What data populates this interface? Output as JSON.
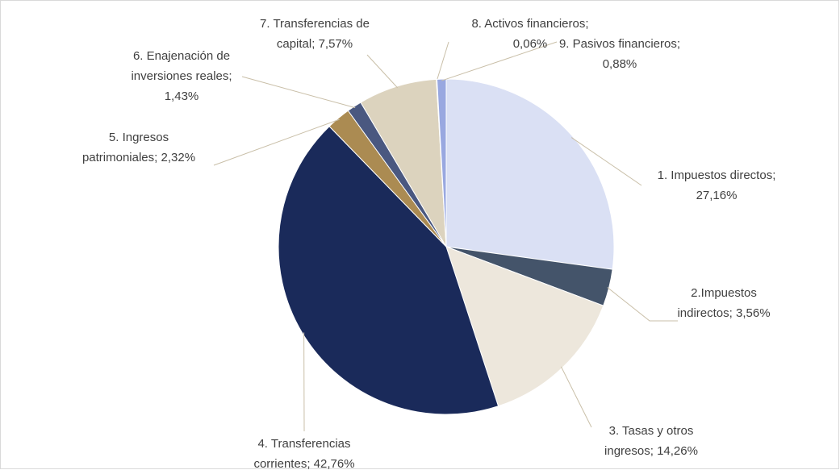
{
  "chart_data": {
    "type": "pie",
    "categories": [
      "1. Impuestos directos;",
      "2.Impuestos indirectos;",
      "3. Tasas y otros ingresos;",
      "4. Transferencias corrientes;",
      "5. Ingresos patrimoniales;",
      "6. Enajenación de inversiones reales;",
      "7. Transferencias de capital;",
      "8. Activos financieros;",
      "9. Pasivos financieros;"
    ],
    "values": [
      27.16,
      3.56,
      14.26,
      42.76,
      2.32,
      1.43,
      7.57,
      0.06,
      0.88
    ],
    "value_labels": [
      "27,16%",
      "3,56%",
      "14,26%",
      "42,76%",
      "2,32%",
      "1,43%",
      "7,57%",
      "0,06%",
      "0,88%"
    ],
    "colors": [
      "#dae0f4",
      "#44546a",
      "#ede7dc",
      "#1a2a5a",
      "#ab8b52",
      "#4a5880",
      "#dcd3be",
      "#b8a57a",
      "#99a8e0"
    ]
  }
}
